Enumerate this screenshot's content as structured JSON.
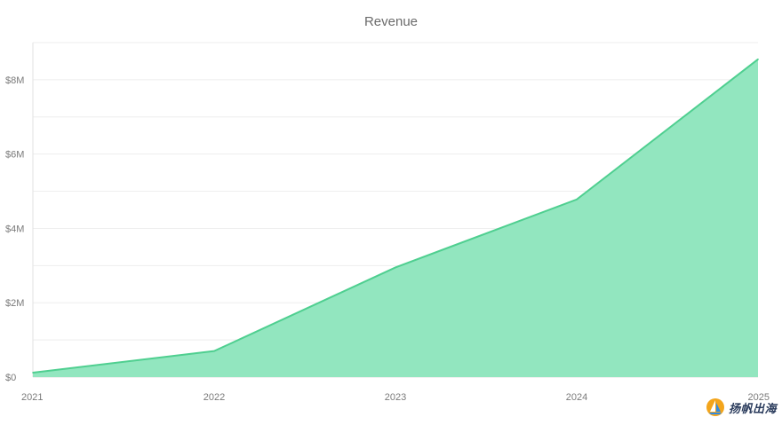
{
  "chart_data": {
    "type": "area",
    "title": "Revenue",
    "categories": [
      "2021",
      "2022",
      "2023",
      "2024",
      "2025"
    ],
    "series": [
      {
        "values": [
          0.12,
          0.7,
          2.95,
          4.78,
          8.55
        ]
      }
    ],
    "y_unit": "M",
    "y_prefix": "$",
    "ylim": [
      0,
      9
    ],
    "yticks": [
      0,
      2,
      4,
      6,
      8
    ],
    "ytick_labels": [
      "$0",
      "$2M",
      "$4M",
      "$6M",
      "$8M"
    ],
    "grid": true,
    "legend": "none",
    "fill_color": "#92e6bf",
    "line_color": "#4fcf90"
  },
  "watermark": {
    "text": "扬帆出海",
    "icon": "sail-logo-icon"
  }
}
